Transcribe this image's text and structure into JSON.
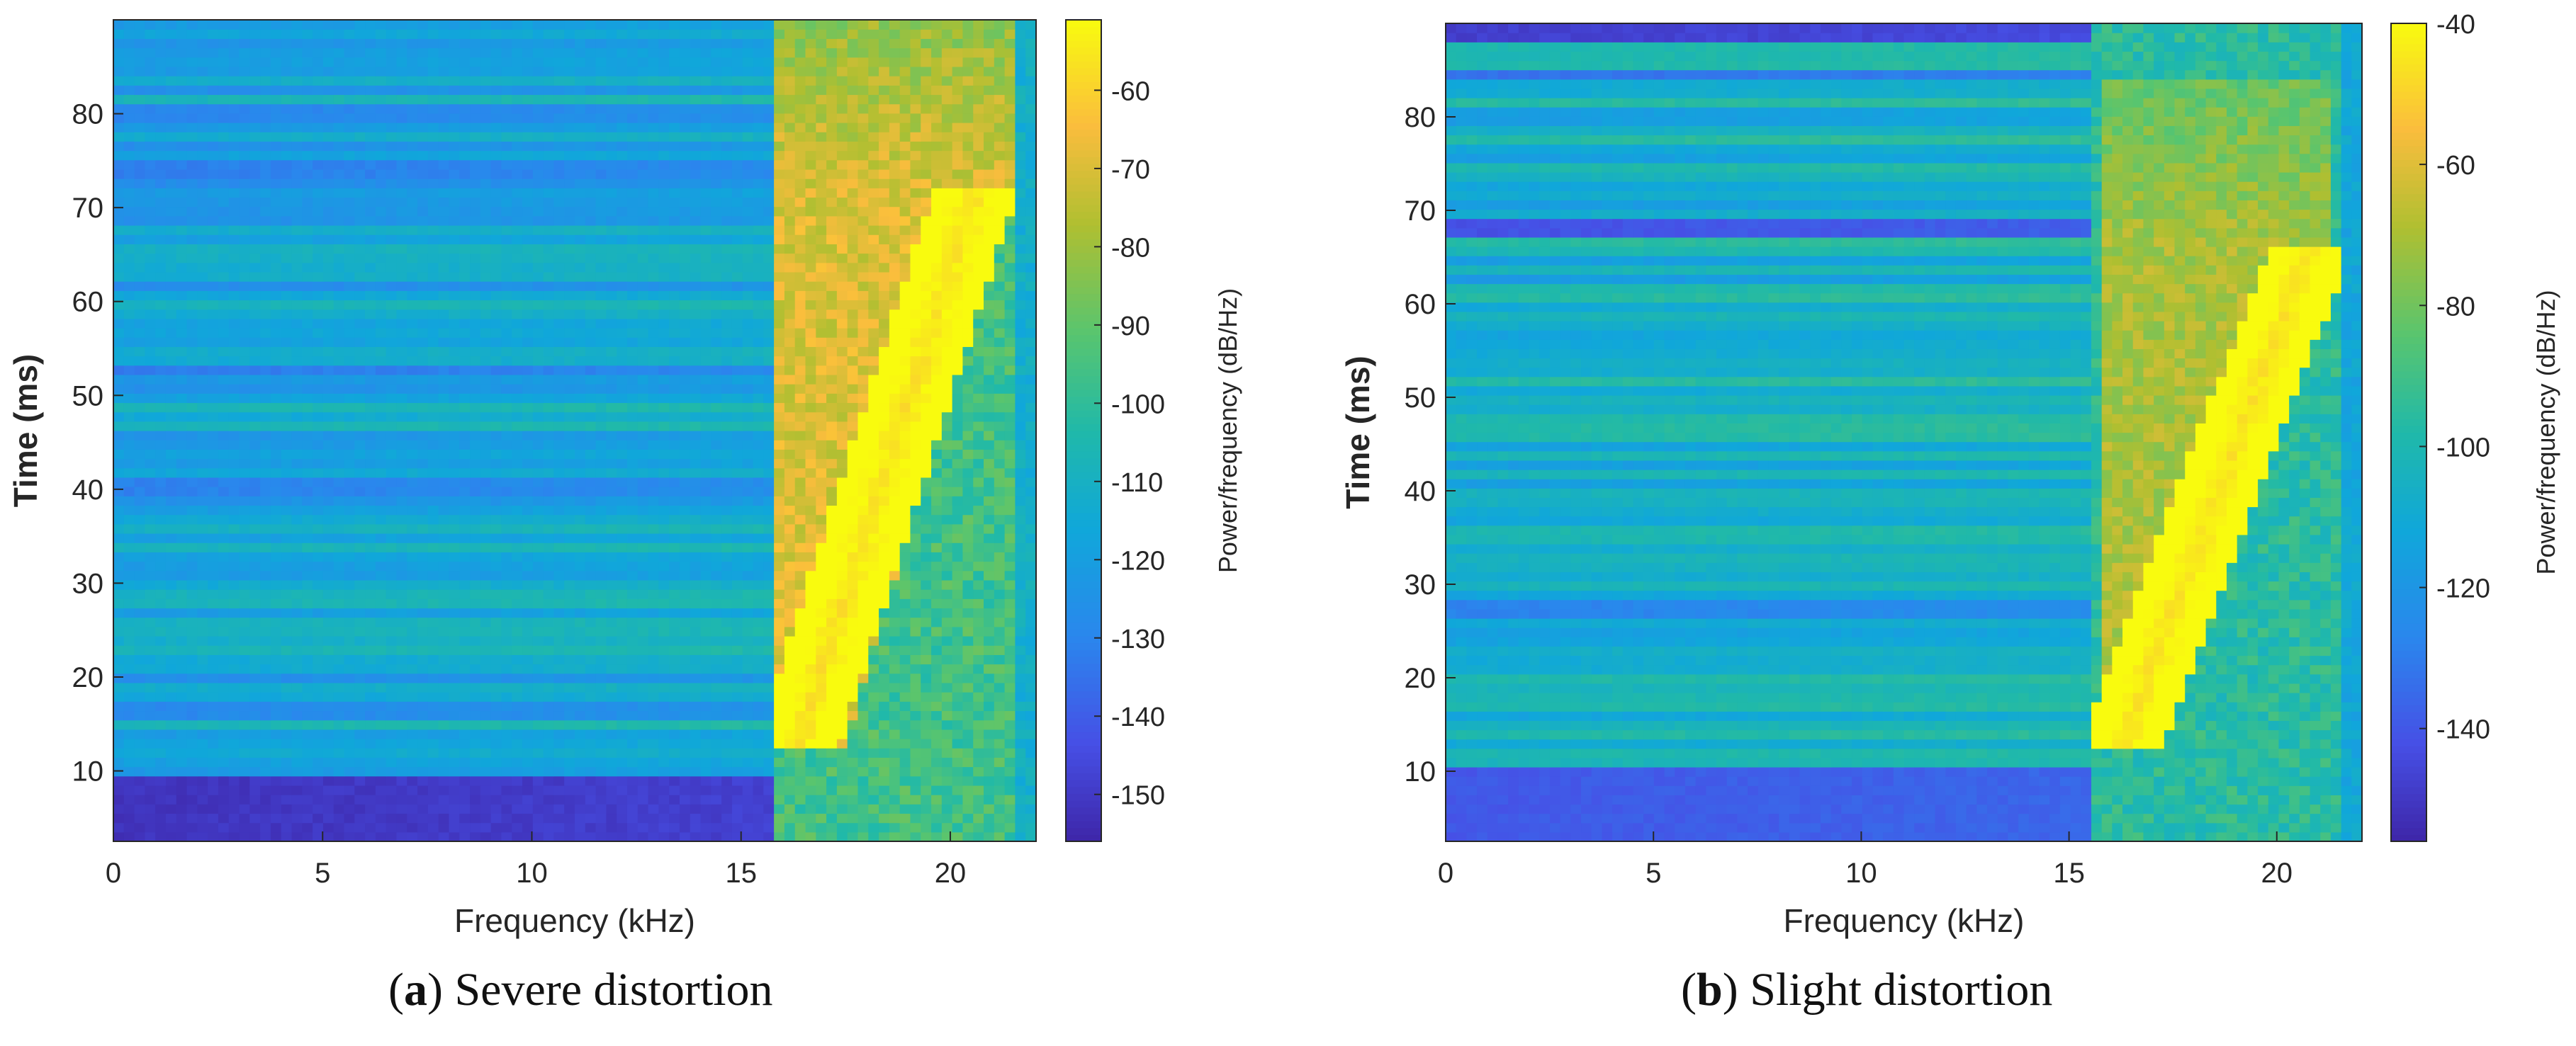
{
  "chart_data": [
    {
      "type": "heatmap",
      "panel_label": "a",
      "caption": "Severe distortion",
      "xlabel": "Frequency (kHz)",
      "ylabel": "Time (ms)",
      "xlim": [
        0,
        22.05
      ],
      "ylim": [
        2.5,
        90
      ],
      "xticks": [
        0,
        5,
        10,
        15,
        20
      ],
      "yticks": [
        10,
        20,
        30,
        40,
        50,
        60,
        70,
        80
      ],
      "colorbar": {
        "label": "Power/frequency (dB/Hz)",
        "range": [
          -156,
          -51
        ],
        "ticks": [
          -60,
          -70,
          -80,
          -90,
          -100,
          -110,
          -120,
          -130,
          -140,
          -150
        ]
      },
      "band_edge_khz": 15.8,
      "background_dB": -118,
      "chirp": {
        "t_start": 12,
        "t_end": 72,
        "f_start": 16.3,
        "f_end": 20.6,
        "peak_dB": -57,
        "envelope_low_khz": 15.9,
        "envelope_high_khz_at_start": 17.4,
        "envelope_high_khz_at_end": 21.5
      },
      "strong_bands": [
        {
          "t_from": 2.5,
          "t_to": 9.5,
          "dB": -152
        },
        {
          "t_from": 73.5,
          "t_to": 75,
          "dB": -132
        },
        {
          "t_from": 79.5,
          "t_to": 81,
          "dB": -130
        },
        {
          "t_from": 52,
          "t_to": 53.5,
          "dB": -133
        },
        {
          "t_from": 39.5,
          "t_to": 41,
          "dB": -131
        },
        {
          "t_from": 15.5,
          "t_to": 17,
          "dB": -129
        }
      ]
    },
    {
      "type": "heatmap",
      "panel_label": "b",
      "caption": "Slight distortion",
      "xlabel": "Frequency (kHz)",
      "ylabel": "Time (ms)",
      "xlim": [
        0,
        22.05
      ],
      "ylim": [
        2.5,
        90
      ],
      "xticks": [
        0,
        5,
        10,
        15,
        20
      ],
      "yticks": [
        10,
        20,
        30,
        40,
        50,
        60,
        70,
        80
      ],
      "colorbar": {
        "label": "Power/frequency (dB/Hz)",
        "range": [
          -156,
          -40
        ],
        "ticks": [
          -40,
          -60,
          -80,
          -100,
          -120,
          -140
        ]
      },
      "band_edge_khz": 15.6,
      "background_dB": -108,
      "chirp": {
        "t_start": 12,
        "t_end": 66,
        "f_start": 16.2,
        "f_end": 20.8,
        "peak_dB": -46,
        "envelope_low_khz": 15.8,
        "envelope_high_khz_at_start": 17.2,
        "envelope_high_khz_at_end": 21.4
      },
      "strong_bands": [
        {
          "t_from": 2.5,
          "t_to": 10,
          "dB": -140
        },
        {
          "t_from": 67.5,
          "t_to": 69,
          "dB": -142
        },
        {
          "t_from": 84,
          "t_to": 85.5,
          "dB": -133
        },
        {
          "t_from": 88.5,
          "t_to": 90,
          "dB": -148
        },
        {
          "t_from": 26.5,
          "t_to": 28,
          "dB": -128
        }
      ]
    }
  ],
  "captions": {
    "a": {
      "label": "a",
      "text": "Severe distortion"
    },
    "b": {
      "label": "b",
      "text": "Slight distortion"
    }
  }
}
